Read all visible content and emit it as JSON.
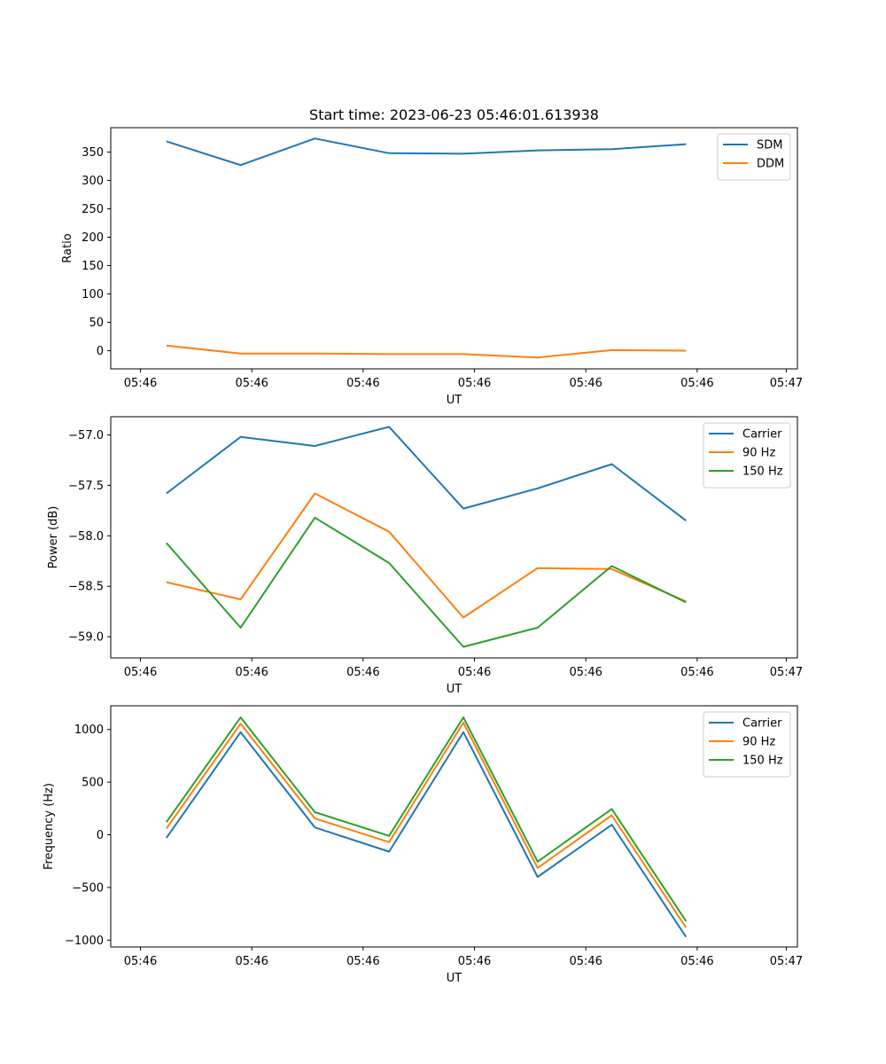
{
  "figure": {
    "title": "Start time: 2023-06-23 05:46:01.613938"
  },
  "chart_data": [
    {
      "type": "line",
      "xlabel": "UT",
      "ylabel": "Ratio",
      "x_tick_labels": [
        "05:46",
        "05:46",
        "05:46",
        "05:46",
        "05:46",
        "05:46",
        "05:47"
      ],
      "xlim": [
        0,
        18.5
      ],
      "x": [
        1.5,
        3.5,
        5.5,
        7.5,
        9.5,
        11.5,
        13.5,
        15.5
      ],
      "ylim": [
        -32,
        393
      ],
      "yticks": [
        0,
        50,
        100,
        150,
        200,
        250,
        300,
        350
      ],
      "legend": "top-right",
      "series": [
        {
          "name": "SDM",
          "color": "#1f77b4",
          "values": [
            369,
            327,
            374,
            348,
            347,
            353,
            355,
            364
          ]
        },
        {
          "name": "DDM",
          "color": "#ff7f0e",
          "values": [
            9,
            -5,
            -5,
            -6,
            -6,
            -12,
            1,
            0
          ]
        }
      ]
    },
    {
      "type": "line",
      "xlabel": "UT",
      "ylabel": "Power (dB)",
      "x_tick_labels": [
        "05:46",
        "05:46",
        "05:46",
        "05:46",
        "05:46",
        "05:46",
        "05:47"
      ],
      "xlim": [
        0,
        18.5
      ],
      "x": [
        1.5,
        3.5,
        5.5,
        7.5,
        9.5,
        11.5,
        13.5,
        15.5
      ],
      "ylim": [
        -59.21,
        -56.82
      ],
      "yticks": [
        -57.0,
        -57.5,
        -58.0,
        -58.5,
        -59.0
      ],
      "ytick_labels": [
        "−57.0",
        "−57.5",
        "−58.0",
        "−58.5",
        "−59.0"
      ],
      "legend": "top-right",
      "series": [
        {
          "name": "Carrier",
          "color": "#1f77b4",
          "values": [
            -57.58,
            -57.02,
            -57.11,
            -56.92,
            -57.73,
            -57.53,
            -57.29,
            -57.85
          ]
        },
        {
          "name": "90 Hz",
          "color": "#ff7f0e",
          "values": [
            -58.46,
            -58.63,
            -57.58,
            -57.96,
            -58.81,
            -58.32,
            -58.33,
            -58.65
          ]
        },
        {
          "name": "150 Hz",
          "color": "#2ca02c",
          "values": [
            -58.07,
            -58.91,
            -57.82,
            -58.27,
            -59.1,
            -58.91,
            -58.3,
            -58.66
          ]
        }
      ]
    },
    {
      "type": "line",
      "xlabel": "UT",
      "ylabel": "Frequency (Hz)",
      "x_tick_labels": [
        "05:46",
        "05:46",
        "05:46",
        "05:46",
        "05:46",
        "05:46",
        "05:47"
      ],
      "xlim": [
        0,
        18.5
      ],
      "x": [
        1.5,
        3.5,
        5.5,
        7.5,
        9.5,
        11.5,
        13.5,
        15.5
      ],
      "ylim": [
        -1065,
        1225
      ],
      "yticks": [
        1000,
        500,
        0,
        -500,
        -1000
      ],
      "ytick_labels": [
        "1000",
        "500",
        "0",
        "−500",
        "−1000"
      ],
      "legend": "top-right",
      "series": [
        {
          "name": "Carrier",
          "color": "#1f77b4",
          "values": [
            -30,
            975,
            70,
            -160,
            975,
            -400,
            95,
            -970
          ]
        },
        {
          "name": "90 Hz",
          "color": "#ff7f0e",
          "values": [
            60,
            1055,
            155,
            -70,
            1065,
            -315,
            185,
            -880
          ]
        },
        {
          "name": "150 Hz",
          "color": "#2ca02c",
          "values": [
            120,
            1115,
            215,
            -10,
            1115,
            -255,
            245,
            -820
          ]
        }
      ]
    }
  ]
}
